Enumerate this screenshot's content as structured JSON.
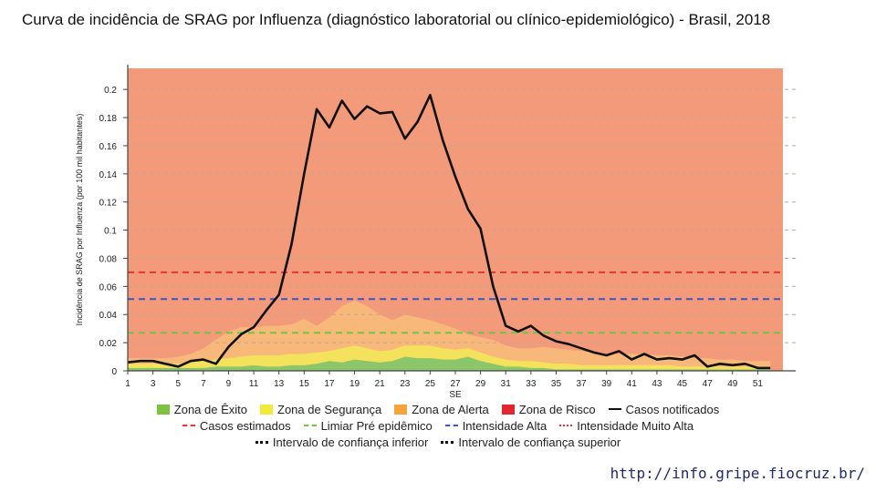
{
  "title": "Curva de incidência de SRAG por Influenza (diagnóstico laboratorial ou clínico-epidemiológico) - Brasil, 2018",
  "url": "http://info.gripe.fiocruz.br/",
  "chart_data": {
    "type": "line",
    "xlabel": "SE",
    "ylabel": "Incidência de SRAG por Influenza (por 100 mil habitantes)",
    "xlim": [
      1,
      53
    ],
    "ylim": [
      0,
      0.215
    ],
    "xticks": [
      1,
      3,
      5,
      7,
      9,
      11,
      13,
      15,
      17,
      19,
      21,
      23,
      25,
      27,
      29,
      31,
      33,
      35,
      37,
      39,
      41,
      43,
      45,
      47,
      49,
      51
    ],
    "yticks": [
      0,
      0.02,
      0.04,
      0.06,
      0.08,
      0.1,
      0.12,
      0.14,
      0.16,
      0.18,
      0.2
    ],
    "grid": true,
    "legend_position": "bottom",
    "x": [
      1,
      2,
      3,
      4,
      5,
      6,
      7,
      8,
      9,
      10,
      11,
      12,
      13,
      14,
      15,
      16,
      17,
      18,
      19,
      20,
      21,
      22,
      23,
      24,
      25,
      26,
      27,
      28,
      29,
      30,
      31,
      32,
      33,
      34,
      35,
      36,
      37,
      38,
      39,
      40,
      41,
      42,
      43,
      44,
      45,
      46,
      47,
      48,
      49,
      50,
      51,
      52
    ],
    "zones": [
      {
        "name": "Zona de Êxito",
        "color": "#7dc243",
        "upper": [
          0.002,
          0.002,
          0.002,
          0.002,
          0.002,
          0.002,
          0.002,
          0.003,
          0.003,
          0.003,
          0.004,
          0.003,
          0.003,
          0.004,
          0.004,
          0.005,
          0.007,
          0.006,
          0.008,
          0.007,
          0.006,
          0.007,
          0.01,
          0.009,
          0.009,
          0.008,
          0.008,
          0.01,
          0.007,
          0.005,
          0.003,
          0.003,
          0.002,
          0.002,
          0.001,
          0.001,
          0.001,
          0.001,
          0.001,
          0.001,
          0.001,
          0.001,
          0.001,
          0.001,
          0.001,
          0.001,
          0.001,
          0.001,
          0.001,
          0.001,
          0.001,
          0.001
        ]
      },
      {
        "name": "Zona de Segurança",
        "color": "#f2e93a",
        "upper": [
          0.005,
          0.005,
          0.005,
          0.005,
          0.005,
          0.006,
          0.007,
          0.008,
          0.009,
          0.01,
          0.011,
          0.011,
          0.011,
          0.012,
          0.012,
          0.013,
          0.014,
          0.016,
          0.018,
          0.016,
          0.014,
          0.015,
          0.018,
          0.018,
          0.018,
          0.016,
          0.015,
          0.016,
          0.013,
          0.01,
          0.008,
          0.007,
          0.007,
          0.006,
          0.005,
          0.005,
          0.004,
          0.004,
          0.004,
          0.004,
          0.004,
          0.004,
          0.004,
          0.004,
          0.003,
          0.003,
          0.003,
          0.003,
          0.003,
          0.003,
          0.003,
          0.003
        ]
      },
      {
        "name": "Zona de Alerta",
        "color": "#f6b26b",
        "upper": [
          0.009,
          0.009,
          0.009,
          0.009,
          0.01,
          0.012,
          0.016,
          0.022,
          0.028,
          0.031,
          0.031,
          0.032,
          0.032,
          0.033,
          0.037,
          0.032,
          0.038,
          0.046,
          0.05,
          0.046,
          0.04,
          0.036,
          0.04,
          0.038,
          0.036,
          0.033,
          0.03,
          0.026,
          0.024,
          0.022,
          0.018,
          0.016,
          0.016,
          0.017,
          0.016,
          0.015,
          0.014,
          0.013,
          0.012,
          0.012,
          0.012,
          0.012,
          0.011,
          0.011,
          0.01,
          0.009,
          0.009,
          0.008,
          0.008,
          0.007,
          0.007,
          0.007
        ]
      },
      {
        "name": "Zona de Risco",
        "color": "#e3262d",
        "upper_to_top": true
      }
    ],
    "thresholds": [
      {
        "name": "Casos estimados",
        "color": "#e8352f",
        "style": "dashed"
      },
      {
        "name": "Limiar Pré epidêmico",
        "color": "#6cc644",
        "style": "dashed",
        "value": 0.027
      },
      {
        "name": "Intensidade Alta",
        "color": "#3b57c4",
        "style": "dashed",
        "value": 0.051
      },
      {
        "name": "Intensidade Muito Alta",
        "color": "#e8352f",
        "style": "dashed",
        "value": 0.07
      }
    ],
    "series": [
      {
        "name": "Casos notificados",
        "color": "#111111",
        "values": [
          0.006,
          0.007,
          0.007,
          0.005,
          0.003,
          0.007,
          0.008,
          0.005,
          0.017,
          0.026,
          0.031,
          0.043,
          0.054,
          0.09,
          0.14,
          0.186,
          0.173,
          0.192,
          0.179,
          0.188,
          0.183,
          0.184,
          0.165,
          0.177,
          0.196,
          0.164,
          0.138,
          0.115,
          0.101,
          0.06,
          0.032,
          0.028,
          0.032,
          0.025,
          0.021,
          0.019,
          0.016,
          0.013,
          0.011,
          0.014,
          0.008,
          0.012,
          0.008,
          0.009,
          0.008,
          0.011,
          0.003,
          0.005,
          0.004,
          0.005,
          0.002,
          0.002
        ]
      }
    ],
    "intervals": [
      {
        "name": "Intervalo de confiança inferior",
        "color": "#111111",
        "style": "dotted"
      },
      {
        "name": "Intervalo de confiança superior",
        "color": "#111111",
        "style": "dotted"
      }
    ]
  }
}
